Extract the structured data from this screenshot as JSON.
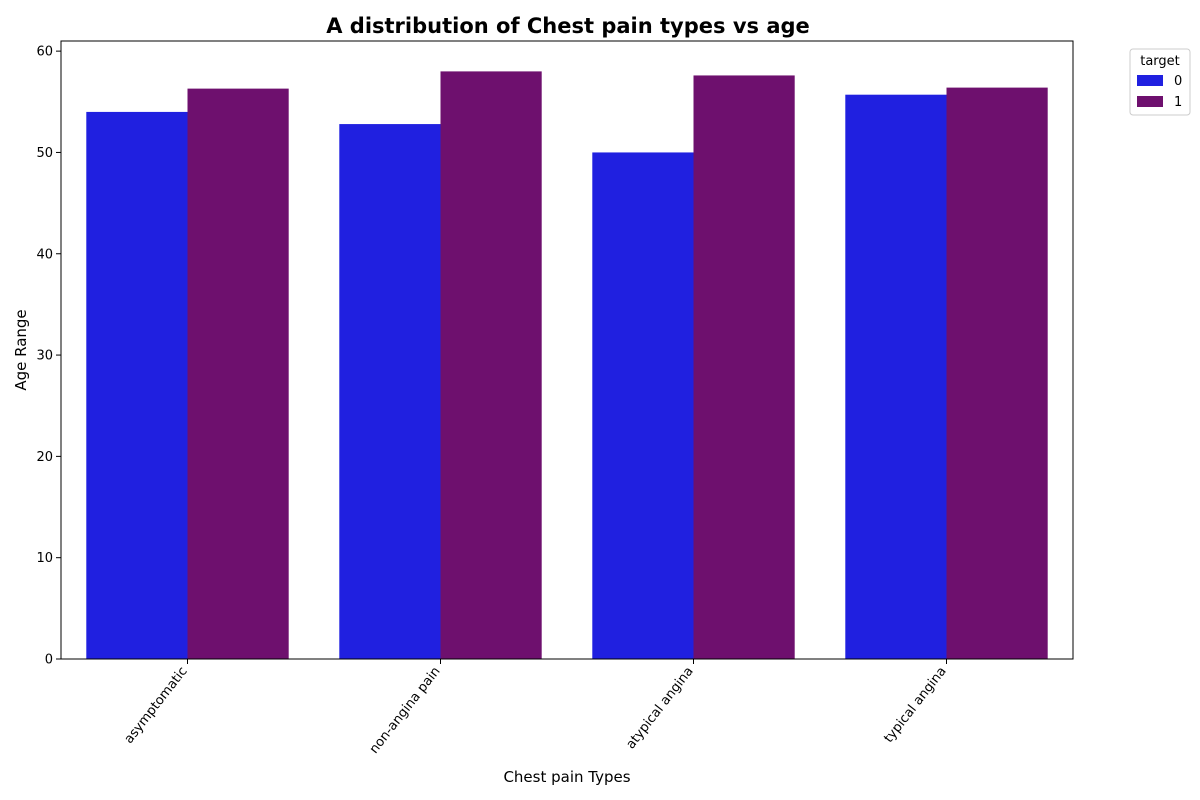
{
  "chart_data": {
    "type": "bar",
    "title": "A distribution of Chest pain types vs age",
    "xlabel": "Chest pain Types",
    "ylabel": "Age Range",
    "categories": [
      "asymptomatic",
      "non-angina pain",
      "atypical angina",
      "typical angina"
    ],
    "series": [
      {
        "name": "0",
        "color": "#2020e0",
        "values": [
          54.0,
          52.8,
          50.0,
          55.7
        ]
      },
      {
        "name": "1",
        "color": "#6e106e",
        "values": [
          56.3,
          58.0,
          57.6,
          56.4
        ]
      }
    ],
    "ylim": [
      0,
      61
    ],
    "yticks": [
      0,
      10,
      20,
      30,
      40,
      50,
      60
    ],
    "legend": {
      "title": "target",
      "placement": "upper-right-outside"
    },
    "grid": false
  }
}
